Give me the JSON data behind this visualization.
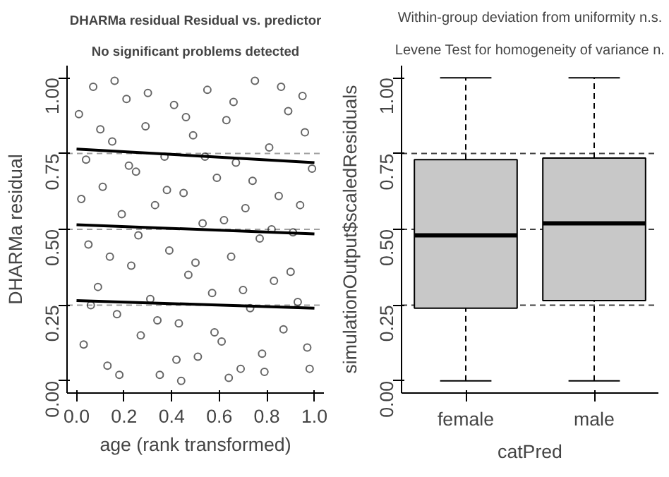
{
  "chart_data": [
    {
      "type": "scatter",
      "title": "DHARMa residual Residual vs. predictor",
      "subtitle": "No significant problems detected",
      "xlabel": "age (rank transformed)",
      "ylabel": "DHARMa residual",
      "xlim": [
        -0.04,
        1.04
      ],
      "ylim": [
        -0.04,
        1.04
      ],
      "xticks": [
        {
          "value": 0,
          "label": "0.0"
        },
        {
          "value": 0.2,
          "label": "0.2"
        },
        {
          "value": 0.4,
          "label": "0.4"
        },
        {
          "value": 0.6,
          "label": "0.6"
        },
        {
          "value": 0.8,
          "label": "0.8"
        },
        {
          "value": 1,
          "label": "1.0"
        }
      ],
      "yticks": [
        {
          "value": 0,
          "label": "0.00"
        },
        {
          "value": 0.25,
          "label": "0.25"
        },
        {
          "value": 0.5,
          "label": "0.50"
        },
        {
          "value": 0.75,
          "label": "0.75"
        },
        {
          "value": 1,
          "label": "1.00"
        }
      ],
      "grid": false,
      "ref_lines": [
        {
          "axis": "y",
          "value": 0.25,
          "color": "#a0a0a0",
          "line_style": "dashed"
        },
        {
          "axis": "y",
          "value": 0.5,
          "color": "#a0a0a0",
          "line_style": "dashed"
        },
        {
          "axis": "y",
          "value": 0.75,
          "color": "#a0a0a0",
          "line_style": "dashed"
        }
      ],
      "series": [
        {
          "type": "scatter",
          "marker": "circle",
          "color": "#000000",
          "x": [
            0.01,
            0.03,
            0.05,
            0.07,
            0.09,
            0.11,
            0.13,
            0.15,
            0.17,
            0.19,
            0.21,
            0.23,
            0.25,
            0.27,
            0.29,
            0.31,
            0.33,
            0.35,
            0.37,
            0.39,
            0.41,
            0.43,
            0.45,
            0.47,
            0.49,
            0.51,
            0.53,
            0.55,
            0.57,
            0.59,
            0.61,
            0.63,
            0.65,
            0.67,
            0.69,
            0.71,
            0.73,
            0.75,
            0.77,
            0.79,
            0.81,
            0.83,
            0.85,
            0.87,
            0.89,
            0.91,
            0.93,
            0.95,
            0.97,
            0.99,
            0.02,
            0.06,
            0.1,
            0.14,
            0.18,
            0.22,
            0.26,
            0.3,
            0.34,
            0.38,
            0.42,
            0.46,
            0.5,
            0.54,
            0.58,
            0.62,
            0.66,
            0.7,
            0.74,
            0.78,
            0.82,
            0.86,
            0.9,
            0.94,
            0.98,
            0.04,
            0.16,
            0.44,
            0.64,
            0.96
          ],
          "values": [
            0.88,
            0.12,
            0.45,
            0.97,
            0.31,
            0.64,
            0.05,
            0.79,
            0.22,
            0.55,
            0.93,
            0.38,
            0.69,
            0.15,
            0.84,
            0.27,
            0.58,
            0.02,
            0.74,
            0.43,
            0.91,
            0.19,
            0.62,
            0.35,
            0.81,
            0.08,
            0.52,
            0.96,
            0.29,
            0.67,
            0.13,
            0.86,
            0.41,
            0.72,
            0.04,
            0.57,
            0.24,
            0.99,
            0.47,
            0.03,
            0.77,
            0.33,
            0.61,
            0.17,
            0.89,
            0.49,
            0.26,
            0.94,
            0.11,
            0.7,
            0.6,
            0.25,
            0.83,
            0.41,
            0.02,
            0.71,
            0.48,
            0.95,
            0.2,
            0.63,
            0.07,
            0.87,
            0.39,
            0.74,
            0.16,
            0.53,
            0.92,
            0.3,
            0.66,
            0.09,
            0.5,
            0.97,
            0.36,
            0.58,
            0.04,
            0.73,
            0.99,
            0.0,
            0.01,
            0.82
          ]
        },
        {
          "type": "line",
          "color": "#000000",
          "x": [
            0,
            1
          ],
          "values": [
            0.765,
            0.72
          ]
        },
        {
          "type": "line",
          "color": "#000000",
          "x": [
            0,
            1
          ],
          "values": [
            0.515,
            0.485
          ]
        },
        {
          "type": "line",
          "color": "#000000",
          "x": [
            0,
            1
          ],
          "values": [
            0.265,
            0.24
          ]
        }
      ]
    },
    {
      "type": "box",
      "title": "Within-group deviation from uniformity n.s.",
      "subtitle": "Levene Test for homogeneity of variance n.",
      "xlabel": "catPred",
      "ylabel": "simulationOutput$scaledResiduals",
      "categories": [
        "female",
        "male"
      ],
      "ylim": [
        -0.04,
        1.04
      ],
      "yticks": [
        {
          "value": 0,
          "label": "0.00"
        },
        {
          "value": 0.25,
          "label": "0.25"
        },
        {
          "value": 0.5,
          "label": "0.50"
        },
        {
          "value": 0.75,
          "label": "0.75"
        },
        {
          "value": 1,
          "label": "1.00"
        }
      ],
      "grid": false,
      "color": "#c8c8c8",
      "ref_lines": [
        {
          "axis": "y",
          "value": 0.25,
          "color": "#404040",
          "line_style": "dashed"
        },
        {
          "axis": "y",
          "value": 0.5,
          "color": "#404040",
          "line_style": "dashed"
        },
        {
          "axis": "y",
          "value": 0.75,
          "color": "#404040",
          "line_style": "dashed"
        }
      ],
      "boxes": [
        {
          "low": 0,
          "q1": 0.24,
          "median": 0.48,
          "q3": 0.73,
          "high": 1.0
        },
        {
          "low": 0,
          "q1": 0.265,
          "median": 0.52,
          "q3": 0.735,
          "high": 1.0
        }
      ]
    }
  ]
}
